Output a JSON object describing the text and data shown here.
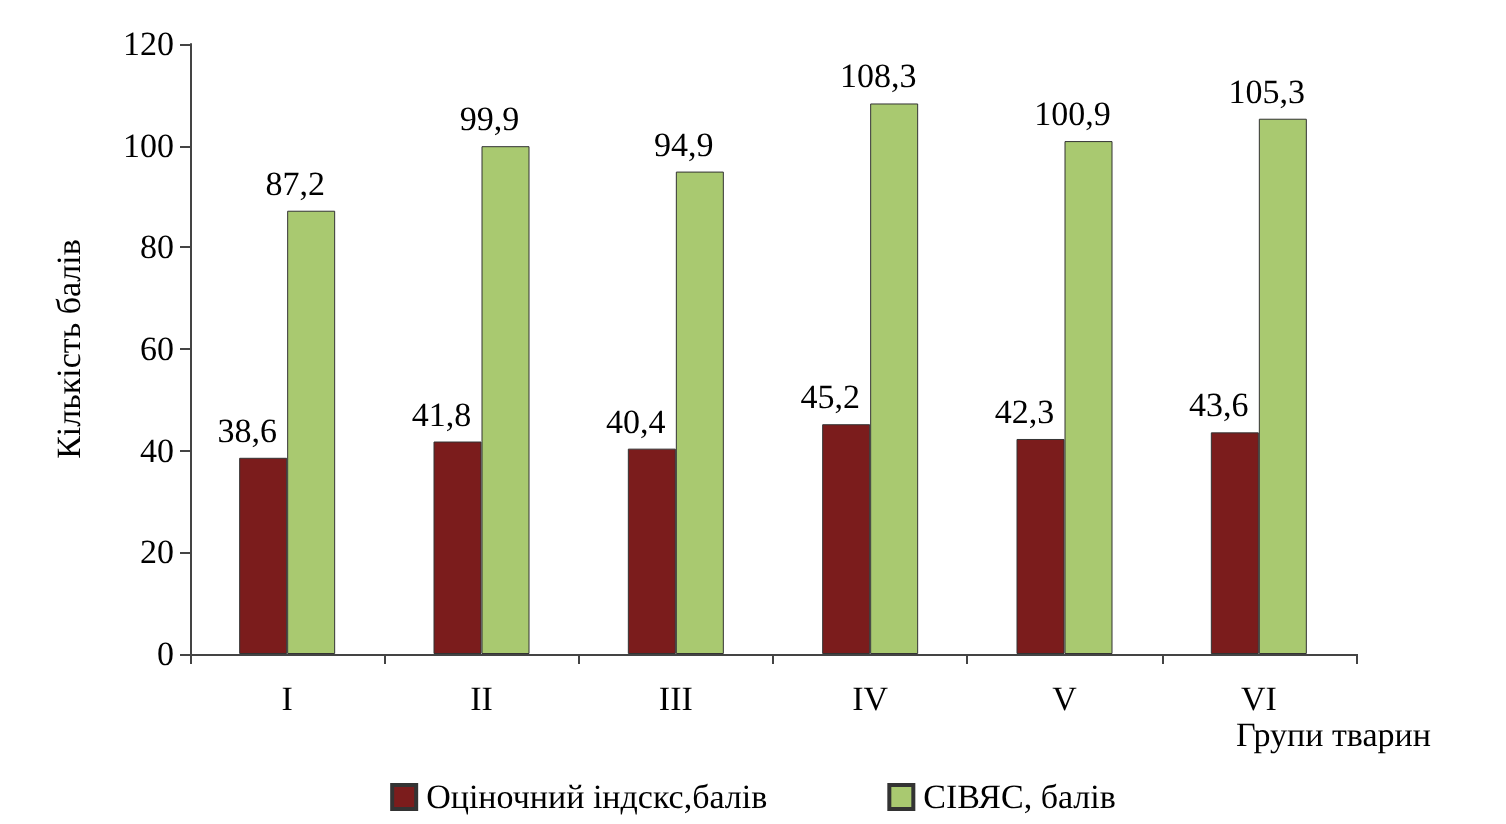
{
  "chart_data": {
    "type": "bar",
    "xlabel": "Групи тварин",
    "ylabel": "Кількість балів",
    "categories": [
      "I",
      "II",
      "III",
      "IV",
      "V",
      "VI"
    ],
    "series": [
      {
        "name": "Оціночний індскс,балів",
        "color": "#7b1c1c",
        "values": [
          38.6,
          41.8,
          40.4,
          45.2,
          42.3,
          43.6
        ],
        "value_labels": [
          "38,6",
          "41,8",
          "40,4",
          "45,2",
          "42,3",
          "43,6"
        ]
      },
      {
        "name": "СІВЯС, балів",
        "color": "#a9c970",
        "values": [
          87.2,
          99.9,
          94.9,
          108.3,
          100.9,
          105.3
        ],
        "value_labels": [
          "87,2",
          "99,9",
          "94,9",
          "108,3",
          "100,9",
          "105,3"
        ]
      }
    ],
    "ylim": [
      0,
      120
    ],
    "yticks": [
      0,
      20,
      40,
      60,
      80,
      100,
      120
    ],
    "grid": false,
    "legend": "bottom"
  }
}
